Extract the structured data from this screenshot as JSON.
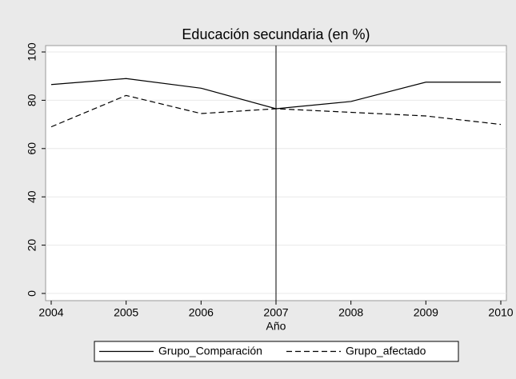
{
  "chart_data": {
    "type": "line",
    "title": "Educación secundaria (en %)",
    "x_label": "Año",
    "x": [
      2004,
      2005,
      2006,
      2007,
      2008,
      2009,
      2010
    ],
    "series": [
      {
        "name": "Grupo_Comparación",
        "color": "#000000",
        "dash": "solid",
        "values": [
          86.5,
          89,
          85,
          76.5,
          79.5,
          87.5,
          87.5
        ]
      },
      {
        "name": "Grupo_afectado",
        "color": "#000000",
        "dash": "dashed",
        "values": [
          69,
          82,
          74.5,
          76.5,
          75,
          73.5,
          70
        ]
      }
    ],
    "xlim": [
      2004,
      2010
    ],
    "xticks": [
      2004,
      2005,
      2006,
      2007,
      2008,
      2009,
      2010
    ],
    "ylim": [
      0,
      100
    ],
    "yticks": [
      0,
      20,
      40,
      60,
      80,
      100
    ],
    "xline": 2007,
    "grid": true,
    "legend": "bottom"
  }
}
